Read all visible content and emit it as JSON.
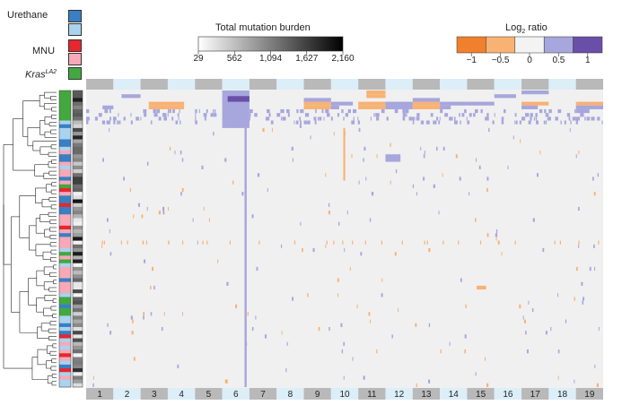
{
  "chart_data": {
    "type": "heatmap",
    "group_legend": {
      "items": [
        {
          "label": "Urethane",
          "colors": [
            "#3a7fc4",
            "#a9d3ef"
          ]
        },
        {
          "label": "MNU",
          "colors": [
            "#e8262d",
            "#f7a9b8"
          ]
        },
        {
          "label": "Kras",
          "label_superscript": "LA2",
          "colors": [
            "#43a83f"
          ]
        }
      ]
    },
    "mutation_burden_legend": {
      "title": "Total mutation burden",
      "ticks": [
        "29",
        "562",
        "1,094",
        "1,627",
        "2,160"
      ],
      "range": [
        29,
        2160
      ],
      "colors": [
        "#ffffff",
        "#000000"
      ]
    },
    "log2_ratio_legend": {
      "title_prefix": "Log",
      "title_subscript": "2",
      "title_suffix": " ratio",
      "ticks": [
        "−1",
        "−0.5",
        "0",
        "0.5",
        "1"
      ],
      "bins": [
        -1,
        -0.5,
        0,
        0.5,
        1
      ],
      "colors": [
        "#f07f2e",
        "#f8b274",
        "#f3f3f3",
        "#a7a6dd",
        "#6a4fa8"
      ]
    },
    "chromosomes": [
      "1",
      "2",
      "3",
      "4",
      "5",
      "6",
      "7",
      "8",
      "9",
      "10",
      "11",
      "12",
      "13",
      "14",
      "15",
      "16",
      "17",
      "18",
      "19"
    ],
    "chromosome_relative_sizes": [
      1.0,
      0.92,
      0.8,
      0.79,
      0.77,
      0.76,
      0.74,
      0.66,
      0.63,
      0.66,
      0.62,
      0.61,
      0.61,
      0.64,
      0.53,
      0.5,
      0.48,
      0.46,
      0.31
    ],
    "n_samples": 79,
    "sample_groups": "urethane, MNU and KrasLA2 tumours",
    "notable_events": [
      {
        "chromosome": "6",
        "type": "gain",
        "frequency": "high (cluster)"
      },
      {
        "chromosome": "11",
        "type": "gain/loss",
        "frequency": "cluster"
      },
      {
        "chromosome": "12",
        "type": "gain",
        "frequency": "cluster"
      },
      {
        "chromosome": "13",
        "type": "gain",
        "frequency": "cluster"
      },
      {
        "chromosome": "17",
        "type": "gain",
        "frequency": "cluster"
      },
      {
        "chromosome": "19",
        "type": "gain",
        "frequency": "cluster"
      }
    ]
  }
}
